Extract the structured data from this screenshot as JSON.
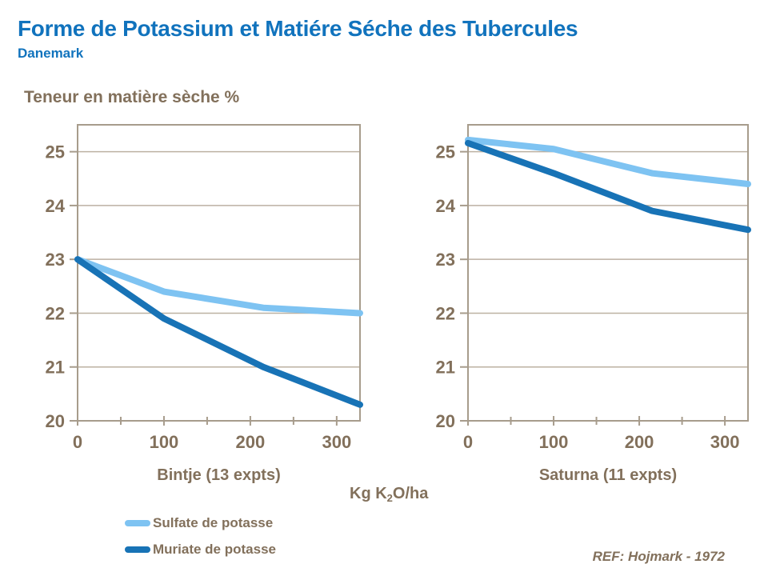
{
  "header": {
    "title": "Forme de Potassium et Matiére Séche des Tubercules",
    "subtitle": "Danemark"
  },
  "y_axis_title": "Teneur en matière sèche %",
  "x_axis_unit": {
    "pre": "Kg K",
    "sub": "2",
    "post": "O/ha"
  },
  "footer": {
    "reference": "REF: Hojmark - 1972"
  },
  "colors": {
    "title_blue": "#1173BD",
    "text_brown": "#82705B",
    "gridline": "#BCB1A2",
    "plot_border": "#A79C8C",
    "sulfate_blue": "#7EC3F2",
    "muriate_blue": "#1873B6",
    "background": "#FFFFFF"
  },
  "legend": {
    "items": [
      {
        "label": "Sulfate de potasse",
        "color_key": "sulfate_blue"
      },
      {
        "label": "Muriate de potasse",
        "color_key": "muriate_blue"
      }
    ]
  },
  "chart_data": [
    {
      "type": "line",
      "title": "Bintje (13 expts)",
      "xlabel": "Kg K2O/ha",
      "ylabel": "Teneur en matière sèche %",
      "xlim": [
        0,
        327
      ],
      "ylim": [
        20,
        25.5
      ],
      "xticks": [
        0,
        100,
        200,
        300
      ],
      "xminor": [
        50,
        150,
        250
      ],
      "yticks": [
        20,
        21,
        22,
        23,
        24,
        25
      ],
      "grid": "horizontal",
      "legend_position": "below",
      "series": [
        {
          "name": "Sulfate de potasse",
          "color_key": "sulfate_blue",
          "points": [
            [
              0,
              23.0
            ],
            [
              100,
              22.4
            ],
            [
              215,
              22.1
            ],
            [
              327,
              22.0
            ]
          ]
        },
        {
          "name": "Muriate de potasse",
          "color_key": "muriate_blue",
          "points": [
            [
              0,
              23.0
            ],
            [
              100,
              21.9
            ],
            [
              215,
              21.0
            ],
            [
              327,
              20.3
            ]
          ]
        }
      ]
    },
    {
      "type": "line",
      "title": "Saturna (11 expts)",
      "xlabel": "Kg K2O/ha",
      "ylabel": "Teneur en matière sèche %",
      "xlim": [
        0,
        327
      ],
      "ylim": [
        20,
        25.5
      ],
      "xticks": [
        0,
        100,
        200,
        300
      ],
      "xminor": [
        50,
        150,
        250
      ],
      "yticks": [
        20,
        21,
        22,
        23,
        24,
        25
      ],
      "grid": "horizontal",
      "legend_position": "below",
      "series": [
        {
          "name": "Sulfate de potasse",
          "color_key": "sulfate_blue",
          "points": [
            [
              0,
              25.22
            ],
            [
              100,
              25.05
            ],
            [
              215,
              24.6
            ],
            [
              327,
              24.4
            ]
          ]
        },
        {
          "name": "Muriate de potasse",
          "color_key": "muriate_blue",
          "points": [
            [
              0,
              25.16
            ],
            [
              100,
              24.6
            ],
            [
              215,
              23.9
            ],
            [
              327,
              23.55
            ]
          ]
        }
      ]
    }
  ]
}
